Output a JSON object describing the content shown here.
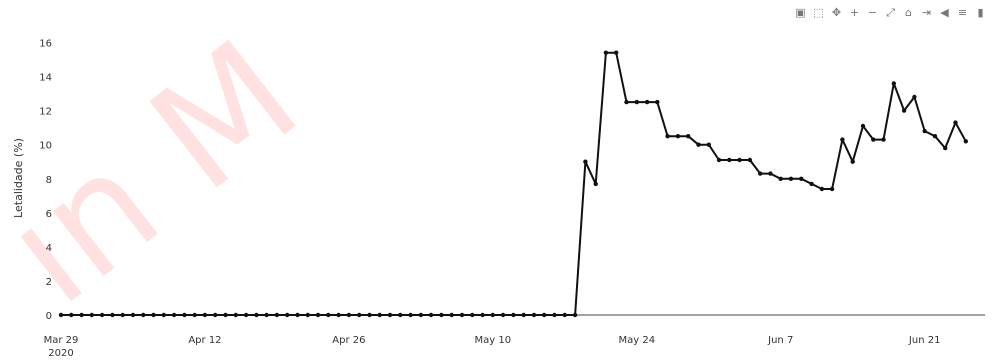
{
  "toolbar": {
    "icons": [
      {
        "name": "camera-icon",
        "glyph": "▣"
      },
      {
        "name": "zoom-icon",
        "glyph": "⬚"
      },
      {
        "name": "pan-icon",
        "glyph": "✥"
      },
      {
        "name": "zoom-in-icon",
        "glyph": "+"
      },
      {
        "name": "zoom-out-icon",
        "glyph": "−"
      },
      {
        "name": "autoscale-icon",
        "glyph": "⤢"
      },
      {
        "name": "reset-axes-icon",
        "glyph": "⌂"
      },
      {
        "name": "spike-lines-icon",
        "glyph": "⇥"
      },
      {
        "name": "hover-closest-icon",
        "glyph": "◀"
      },
      {
        "name": "hover-compare-icon",
        "glyph": "≡"
      },
      {
        "name": "plotly-logo-icon",
        "glyph": "▮"
      }
    ]
  },
  "colors": {
    "line": "#111111",
    "axis": "#444444"
  },
  "chart_data": {
    "type": "line",
    "title": "",
    "xlabel": "",
    "ylabel": "Letalidade (%)",
    "x_start": "2020-03-29",
    "x_end": "2020-06-25",
    "x_ticks": [
      {
        "date": "2020-03-29",
        "label": "Mar 29",
        "sublabel": "2020"
      },
      {
        "date": "2020-04-12",
        "label": "Apr 12"
      },
      {
        "date": "2020-04-26",
        "label": "Apr 26"
      },
      {
        "date": "2020-05-10",
        "label": "May 10"
      },
      {
        "date": "2020-05-24",
        "label": "May 24"
      },
      {
        "date": "2020-06-07",
        "label": "Jun 7"
      },
      {
        "date": "2020-06-21",
        "label": "Jun 21"
      }
    ],
    "ylim": [
      0,
      16.5
    ],
    "y_ticks": [
      0,
      2,
      4,
      6,
      8,
      10,
      12,
      14,
      16
    ],
    "grid": false,
    "series": [
      {
        "x": [
          "2020-03-29",
          "2020-03-30",
          "2020-03-31",
          "2020-04-01",
          "2020-04-02",
          "2020-04-03",
          "2020-04-04",
          "2020-04-05",
          "2020-04-06",
          "2020-04-07",
          "2020-04-08",
          "2020-04-09",
          "2020-04-10",
          "2020-04-11",
          "2020-04-12",
          "2020-04-13",
          "2020-04-14",
          "2020-04-15",
          "2020-04-16",
          "2020-04-17",
          "2020-04-18",
          "2020-04-19",
          "2020-04-20",
          "2020-04-21",
          "2020-04-22",
          "2020-04-23",
          "2020-04-24",
          "2020-04-25",
          "2020-04-26",
          "2020-04-27",
          "2020-04-28",
          "2020-04-29",
          "2020-04-30",
          "2020-05-01",
          "2020-05-02",
          "2020-05-03",
          "2020-05-04",
          "2020-05-05",
          "2020-05-06",
          "2020-05-07",
          "2020-05-08",
          "2020-05-09",
          "2020-05-10",
          "2020-05-11",
          "2020-05-12",
          "2020-05-13",
          "2020-05-14",
          "2020-05-15",
          "2020-05-16",
          "2020-05-17",
          "2020-05-18",
          "2020-05-19",
          "2020-05-20",
          "2020-05-21",
          "2020-05-22",
          "2020-05-23",
          "2020-05-24",
          "2020-05-25",
          "2020-05-26",
          "2020-05-27",
          "2020-05-28",
          "2020-05-29",
          "2020-05-30",
          "2020-05-31",
          "2020-06-01",
          "2020-06-02",
          "2020-06-03",
          "2020-06-04",
          "2020-06-05",
          "2020-06-06",
          "2020-06-07",
          "2020-06-08",
          "2020-06-09",
          "2020-06-10",
          "2020-06-11",
          "2020-06-12",
          "2020-06-13",
          "2020-06-14",
          "2020-06-15",
          "2020-06-16",
          "2020-06-17",
          "2020-06-18",
          "2020-06-19",
          "2020-06-20",
          "2020-06-21",
          "2020-06-22",
          "2020-06-23",
          "2020-06-24",
          "2020-06-25"
        ],
        "y": [
          0,
          0,
          0,
          0,
          0,
          0,
          0,
          0,
          0,
          0,
          0,
          0,
          0,
          0,
          0,
          0,
          0,
          0,
          0,
          0,
          0,
          0,
          0,
          0,
          0,
          0,
          0,
          0,
          0,
          0,
          0,
          0,
          0,
          0,
          0,
          0,
          0,
          0,
          0,
          0,
          0,
          0,
          0,
          0,
          0,
          0,
          0,
          0,
          0,
          0,
          0,
          9,
          7.7,
          15.4,
          15.4,
          12.5,
          12.5,
          12.5,
          12.5,
          10.5,
          10.5,
          10.5,
          10,
          10,
          9.1,
          9.1,
          9.1,
          9.1,
          8.3,
          8.3,
          8,
          8,
          8,
          7.7,
          7.4,
          7.4,
          10.3,
          9,
          11.1,
          10.3,
          10.3,
          13.6,
          12,
          12.8,
          10.8,
          10.5,
          9.8,
          11.3,
          10.2
        ]
      }
    ]
  }
}
